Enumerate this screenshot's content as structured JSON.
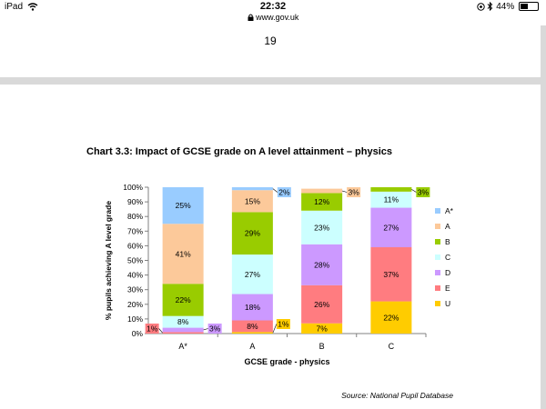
{
  "status_bar": {
    "device": "iPad",
    "time": "22:32",
    "url": "www.gov.uk",
    "battery": "44%",
    "battery_level": 0.44,
    "icons": [
      "wifi-icon",
      "lock-icon",
      "location-icon",
      "bluetooth-icon",
      "battery-icon"
    ]
  },
  "page_top": {
    "page_number": "19"
  },
  "chart_title": "Chart 3.3: Impact of GCSE grade on A level attainment – physics",
  "source": "Source: National Pupil Database",
  "chart_data": {
    "type": "bar",
    "stacked": true,
    "orientation": "vertical",
    "categories": [
      "A*",
      "A",
      "B",
      "C"
    ],
    "xlabel": "GCSE grade - physics",
    "ylabel": "% pupils achieving A level grade",
    "ylim": [
      0,
      100
    ],
    "yticks": [
      "0%",
      "10%",
      "20%",
      "30%",
      "40%",
      "50%",
      "60%",
      "70%",
      "80%",
      "90%",
      "100%"
    ],
    "grid": false,
    "legend_position": "right",
    "stack_order_bottom_to_top": [
      "U",
      "E",
      "D",
      "C",
      "B",
      "A",
      "A*"
    ],
    "series": [
      {
        "name": "A*",
        "color": "#99ccff",
        "values": [
          25,
          2,
          0,
          0
        ],
        "labels": [
          "25%",
          "2%",
          "",
          ""
        ]
      },
      {
        "name": "A",
        "color": "#fcc99a",
        "values": [
          41,
          15,
          3,
          0
        ],
        "labels": [
          "41%",
          "15%",
          "3%",
          ""
        ]
      },
      {
        "name": "B",
        "color": "#99cc00",
        "values": [
          22,
          29,
          12,
          3
        ],
        "labels": [
          "22%",
          "29%",
          "12%",
          "3%"
        ]
      },
      {
        "name": "C",
        "color": "#ccffff",
        "values": [
          8,
          27,
          23,
          11
        ],
        "labels": [
          "8%",
          "27%",
          "23%",
          "11%"
        ]
      },
      {
        "name": "D",
        "color": "#cc99ff",
        "values": [
          3,
          18,
          28,
          27
        ],
        "labels": [
          "3%",
          "18%",
          "28%",
          "27%"
        ]
      },
      {
        "name": "E",
        "color": "#ff7c80",
        "values": [
          1,
          8,
          26,
          37
        ],
        "labels": [
          "1%",
          "8%",
          "26%",
          "37%"
        ]
      },
      {
        "name": "U",
        "color": "#ffcc00",
        "values": [
          0,
          1,
          7,
          22
        ],
        "labels": [
          "",
          "1%",
          "7%",
          "22%"
        ]
      }
    ]
  }
}
